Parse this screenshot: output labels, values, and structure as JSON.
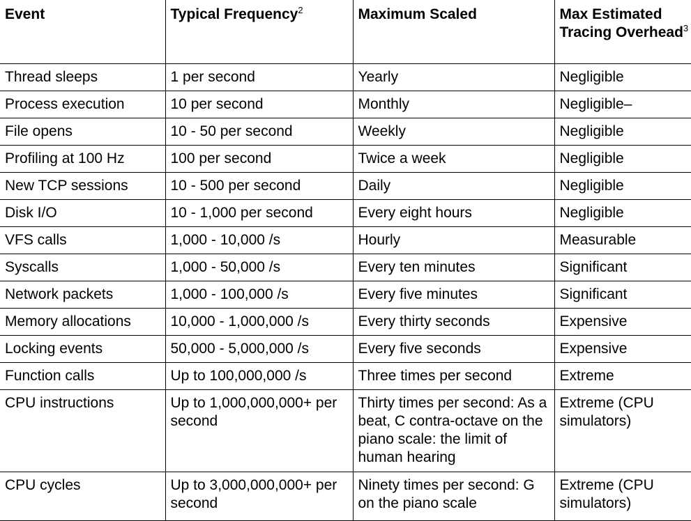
{
  "table": {
    "headers": [
      {
        "label": "Event",
        "sup": ""
      },
      {
        "label": "Typical Frequency",
        "sup": "2"
      },
      {
        "label": "Maximum Scaled",
        "sup": ""
      },
      {
        "label": "Max Estimated Tracing Overhead",
        "sup": "3"
      }
    ],
    "rows": [
      [
        "Thread sleeps",
        "1 per second",
        "Yearly",
        "Negligible"
      ],
      [
        "Process execution",
        "10 per second",
        "Monthly",
        "Negligible–"
      ],
      [
        "File opens",
        "10 - 50 per second",
        "Weekly",
        "Negligible"
      ],
      [
        "Profiling at 100 Hz",
        "100 per second",
        "Twice a week",
        "Negligible"
      ],
      [
        "New TCP sessions",
        "10 - 500 per second",
        "Daily",
        "Negligible"
      ],
      [
        "Disk I/O",
        "10 - 1,000 per second",
        "Every eight hours",
        "Negligible"
      ],
      [
        "VFS calls",
        "1,000 - 10,000 /s",
        "Hourly",
        "Measurable"
      ],
      [
        "Syscalls",
        "1,000 - 50,000 /s",
        "Every ten minutes",
        "Significant"
      ],
      [
        "Network packets",
        "1,000 - 100,000 /s",
        "Every five minutes",
        "Significant"
      ],
      [
        "Memory allocations",
        "10,000 - 1,000,000 /s",
        "Every thirty seconds",
        "Expensive"
      ],
      [
        "Locking events",
        "50,000 - 5,000,000 /s",
        "Every five seconds",
        "Expensive"
      ],
      [
        "Function calls",
        "Up to 100,000,000 /s",
        "Three times per second",
        "Extreme"
      ],
      [
        "CPU instructions",
        "Up to 1,000,000,000+\nper second",
        "Thirty times per second:\nAs a beat, C contra-octave\non the piano scale: the\nlimit of human hearing",
        "Extreme (CPU\nsimulators)"
      ],
      [
        "CPU cycles",
        "Up to 3,000,000,000+\nper second",
        "Ninety times per second:\nG on the piano scale",
        "Extreme (CPU\nsimulators)"
      ]
    ]
  }
}
